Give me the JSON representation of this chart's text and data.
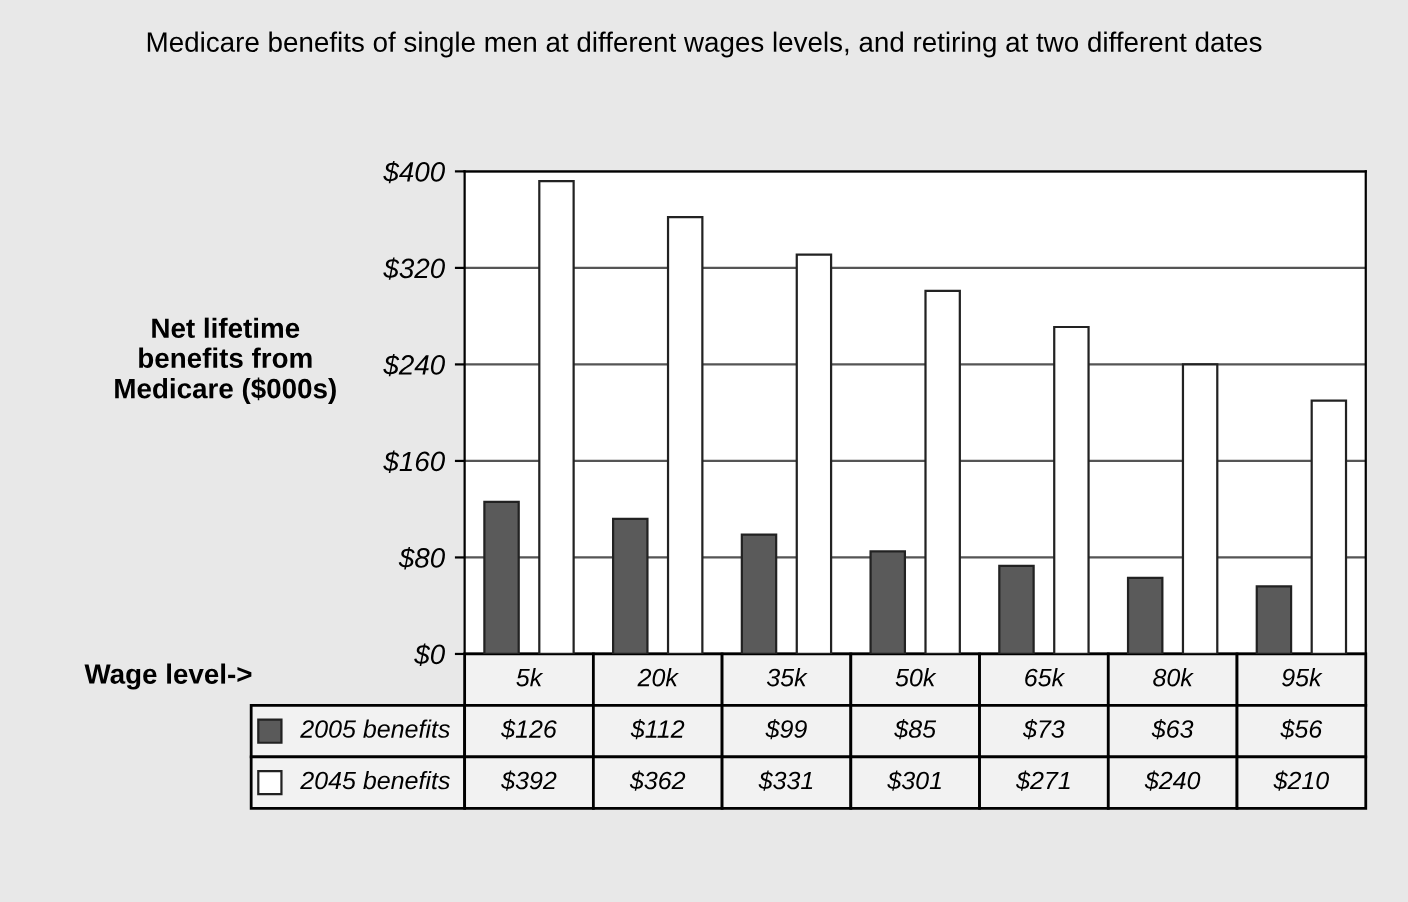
{
  "chart_data": {
    "type": "bar",
    "title": "Medicare benefits of single men at different wages levels, and retiring at two different dates",
    "ylabel": "Net lifetime\nbenefits from\nMedicare ($000s)",
    "annotations": [
      "Wage level->"
    ],
    "categories": [
      "5k",
      "20k",
      "35k",
      "50k",
      "65k",
      "80k",
      "95k"
    ],
    "series": [
      {
        "name": "2005 benefits",
        "color": "#5a5a5a",
        "values": [
          126,
          112,
          99,
          85,
          73,
          63,
          56
        ],
        "value_labels": [
          "$126",
          "$112",
          "$99",
          "$85",
          "$73",
          "$63",
          "$56"
        ]
      },
      {
        "name": "2045 benefits",
        "color": "#ffffff",
        "values": [
          392,
          362,
          331,
          301,
          271,
          240,
          210
        ],
        "value_labels": [
          "$392",
          "$362",
          "$331",
          "$301",
          "$271",
          "$240",
          "$210"
        ]
      }
    ],
    "ylim": [
      0,
      400
    ],
    "yticks": [
      {
        "value": 0,
        "label": "$0"
      },
      {
        "value": 80,
        "label": "$80"
      },
      {
        "value": 160,
        "label": "$160"
      },
      {
        "value": 240,
        "label": "$240"
      },
      {
        "value": 320,
        "label": "$320"
      },
      {
        "value": 400,
        "label": "$400"
      }
    ],
    "grid": "y",
    "legend": "bottom"
  }
}
